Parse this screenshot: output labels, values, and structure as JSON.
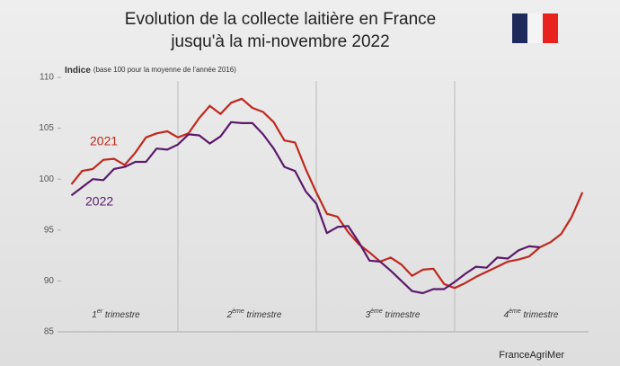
{
  "chart_data": {
    "type": "line",
    "title": [
      "Evolution de la collecte laitière en France",
      "jusqu'à la mi-novembre 2022"
    ],
    "y_label": {
      "bold": "Indice",
      "text": "(base 100 pour la moyenne de l'année 2016)"
    },
    "source": "FranceAgriMer",
    "quarters": [
      {
        "num": "1",
        "sup": "er",
        "text": " trimestre"
      },
      {
        "num": "2",
        "sup": "ème",
        "text": " trimestre"
      },
      {
        "num": "3",
        "sup": "ème",
        "text": " trimestre"
      },
      {
        "num": "4",
        "sup": "ème",
        "text": " trimestre"
      }
    ],
    "x": [
      3,
      4,
      5,
      6,
      7,
      8,
      9,
      10,
      11,
      12,
      13,
      14,
      15,
      16,
      17,
      18,
      19,
      20,
      21,
      22,
      23,
      24,
      25,
      26,
      27,
      28,
      29,
      30,
      31,
      32,
      33,
      34,
      35,
      36,
      37,
      38,
      39,
      40,
      41,
      42,
      43,
      44,
      45,
      46,
      47,
      48,
      49,
      50,
      51
    ],
    "xlim": [
      0,
      52
    ],
    "xticks": [
      13,
      26,
      39
    ],
    "ylim": [
      85,
      110
    ],
    "yticks": [
      85,
      90,
      95,
      100,
      105,
      110
    ],
    "series": [
      {
        "name": "2021",
        "color": "#c0281e",
        "values": [
          99.5,
          100.8,
          101.0,
          101.9,
          102.0,
          101.4,
          102.6,
          104.1,
          104.5,
          104.7,
          104.1,
          104.5,
          106.0,
          107.2,
          106.4,
          107.5,
          107.9,
          107.0,
          106.6,
          105.6,
          103.8,
          103.6,
          101.0,
          98.7,
          96.6,
          96.3,
          94.8,
          93.6,
          92.8,
          91.9,
          92.3,
          91.6,
          90.5,
          91.1,
          91.2,
          89.7,
          89.3,
          89.8,
          90.4,
          90.9,
          91.4,
          91.9,
          92.1,
          92.4,
          93.3,
          93.8,
          94.6,
          96.3,
          98.7
        ]
      },
      {
        "name": "2022",
        "color": "#5b1a6b",
        "values": [
          98.4,
          99.2,
          100.0,
          99.9,
          101.0,
          101.2,
          101.7,
          101.7,
          103.0,
          102.9,
          103.4,
          104.4,
          104.3,
          103.5,
          104.2,
          105.6,
          105.5,
          105.5,
          104.4,
          103.0,
          101.2,
          100.8,
          98.8,
          97.6,
          94.7,
          95.3,
          95.4,
          93.8,
          92.0,
          91.9,
          91.0,
          90.0,
          89.0,
          88.8,
          89.2,
          89.2,
          89.9,
          90.7,
          91.4,
          91.3,
          92.3,
          92.2,
          93.0,
          93.4,
          93.3,
          null,
          null,
          null,
          null
        ]
      }
    ]
  }
}
